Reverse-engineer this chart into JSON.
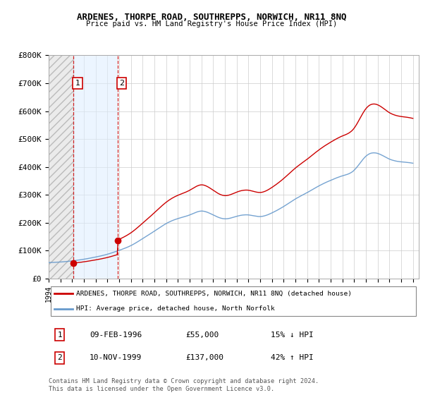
{
  "title": "ARDENES, THORPE ROAD, SOUTHREPPS, NORWICH, NR11 8NQ",
  "subtitle": "Price paid vs. HM Land Registry's House Price Index (HPI)",
  "legend_line1": "ARDENES, THORPE ROAD, SOUTHREPPS, NORWICH, NR11 8NQ (detached house)",
  "legend_line2": "HPI: Average price, detached house, North Norfolk",
  "footer1": "Contains HM Land Registry data © Crown copyright and database right 2024.",
  "footer2": "This data is licensed under the Open Government Licence v3.0.",
  "table_row1": [
    "1",
    "09-FEB-1996",
    "£55,000",
    "15% ↓ HPI"
  ],
  "table_row2": [
    "2",
    "10-NOV-1999",
    "£137,000",
    "42% ↑ HPI"
  ],
  "red_color": "#cc0000",
  "blue_color": "#6699cc",
  "background_color": "#ffffff",
  "grid_color": "#cccccc",
  "sale_year1": 1996.1,
  "sale_price1": 55000,
  "sale_year2": 1999.85,
  "sale_price2": 137000,
  "xlim": [
    1994,
    2025.5
  ],
  "ylim": [
    0,
    800000
  ],
  "xticks": [
    1994,
    1995,
    1996,
    1997,
    1998,
    1999,
    2000,
    2001,
    2002,
    2003,
    2004,
    2005,
    2006,
    2007,
    2008,
    2009,
    2010,
    2011,
    2012,
    2013,
    2014,
    2015,
    2016,
    2017,
    2018,
    2019,
    2020,
    2021,
    2022,
    2023,
    2024,
    2025
  ],
  "yticks": [
    0,
    100000,
    200000,
    300000,
    400000,
    500000,
    600000,
    700000,
    800000
  ],
  "ytick_labels": [
    "£0",
    "£100K",
    "£200K",
    "£300K",
    "£400K",
    "£500K",
    "£600K",
    "£700K",
    "£800K"
  ]
}
